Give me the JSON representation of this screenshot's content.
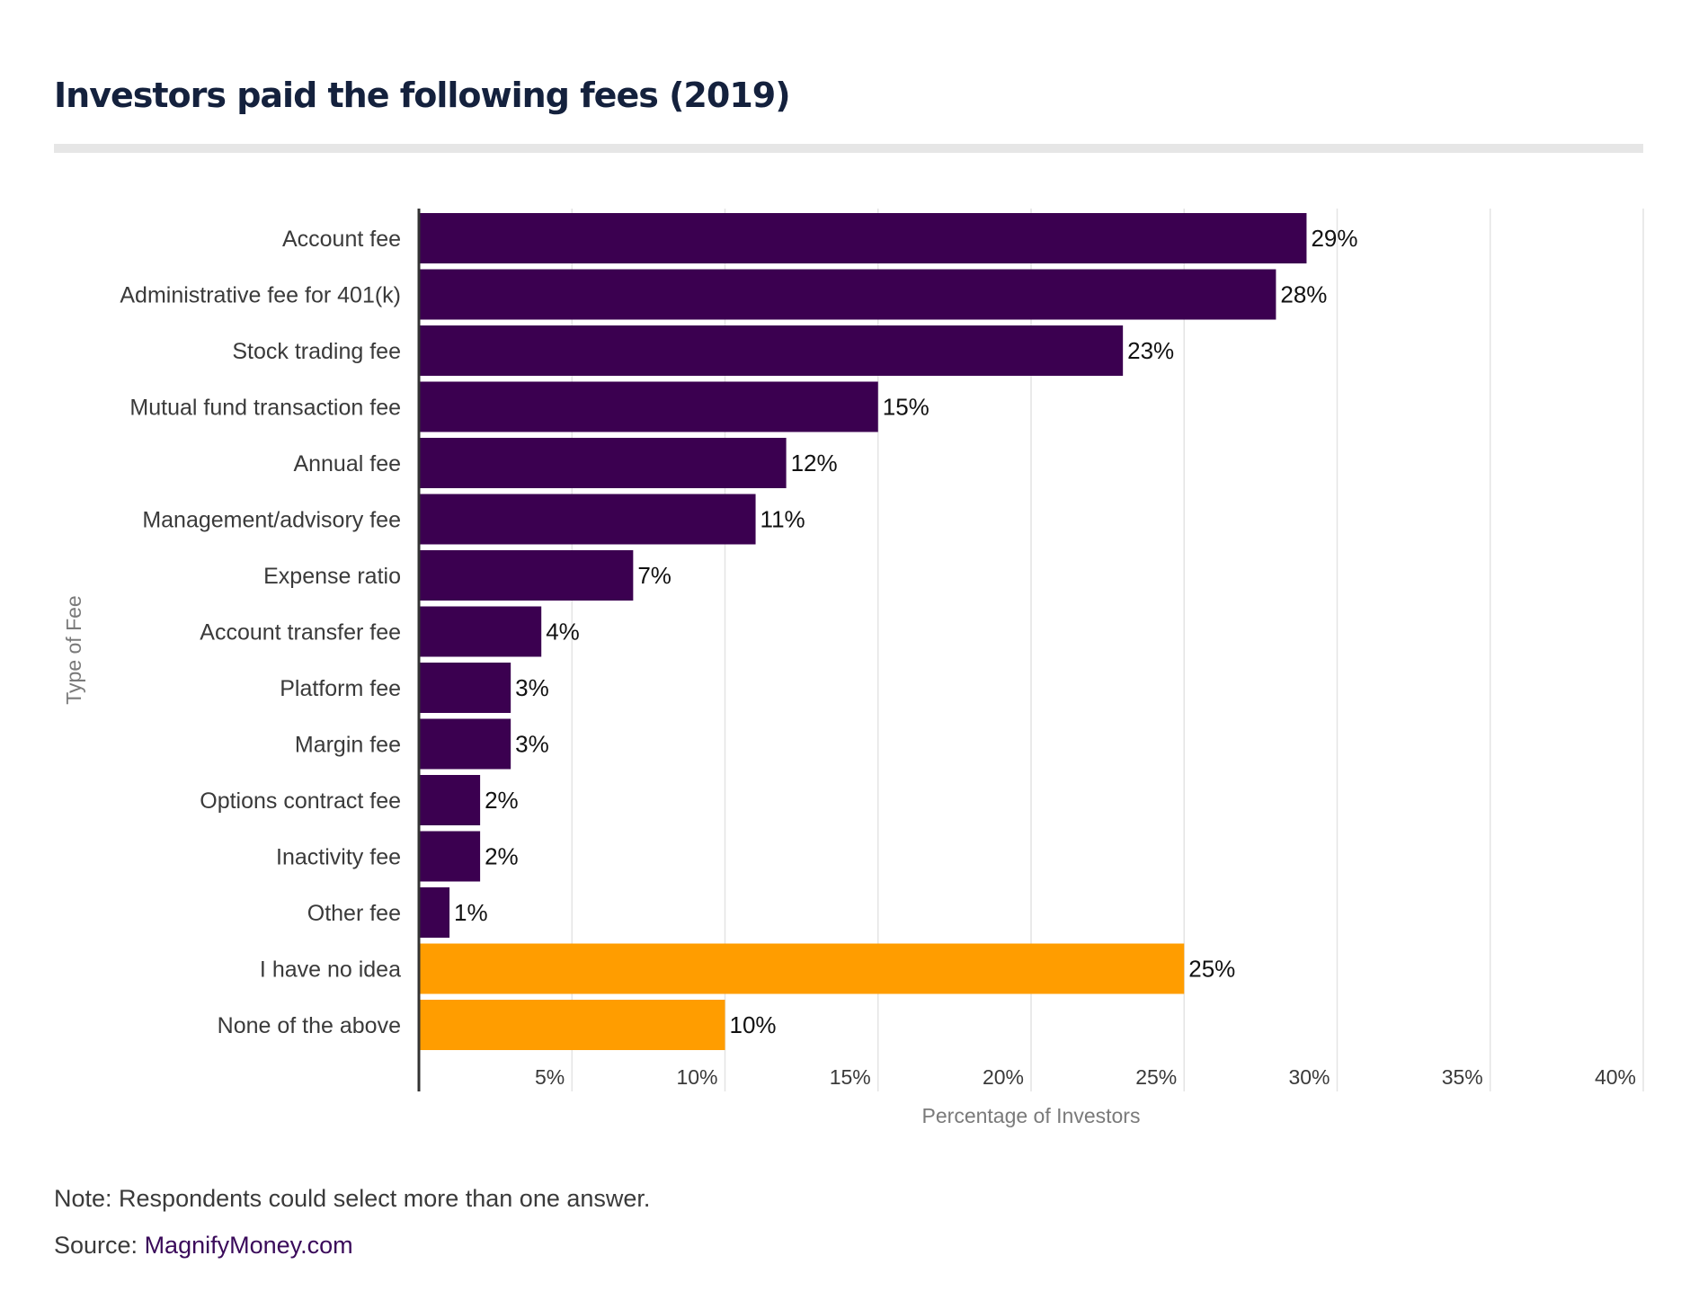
{
  "chart_data": {
    "type": "bar",
    "orientation": "horizontal",
    "title": "Investors paid the following fees (2019)",
    "xlabel": "Percentage of Investors",
    "ylabel": "Type of Fee",
    "xlim": [
      0,
      40
    ],
    "ticks": [
      "5%",
      "10%",
      "15%",
      "20%",
      "25%",
      "30%",
      "35%",
      "40%"
    ],
    "tick_values": [
      5,
      10,
      15,
      20,
      25,
      30,
      35,
      40
    ],
    "grid": true,
    "categories": [
      "Account fee",
      "Administrative fee for 401(k)",
      "Stock trading fee",
      "Mutual fund transaction fee",
      "Annual fee",
      "Management/advisory fee",
      "Expense ratio",
      "Account transfer fee",
      "Platform fee",
      "Margin fee",
      "Options contract fee",
      "Inactivity fee",
      "Other fee",
      "I have no idea",
      "None of the above"
    ],
    "values": [
      29,
      28,
      23,
      15,
      12,
      11,
      7,
      4,
      3,
      3,
      2,
      2,
      1,
      25,
      10
    ],
    "value_labels": [
      "29%",
      "28%",
      "23%",
      "15%",
      "12%",
      "11%",
      "7%",
      "4%",
      "3%",
      "3%",
      "2%",
      "2%",
      "1%",
      "25%",
      "10%"
    ],
    "bar_colors": [
      "#3b0050",
      "#3b0050",
      "#3b0050",
      "#3b0050",
      "#3b0050",
      "#3b0050",
      "#3b0050",
      "#3b0050",
      "#3b0050",
      "#3b0050",
      "#3b0050",
      "#3b0050",
      "#3b0050",
      "#ff9d00",
      "#ff9d00"
    ]
  },
  "footer": {
    "note": "Note: Respondents could select more than one answer.",
    "source_prefix": "Source: ",
    "source_link": "MagnifyMoney.com"
  },
  "colors": {
    "primary_bar": "#3b0050",
    "highlight_bar": "#ff9d00",
    "title": "#14213d",
    "source_link": "#3a0a5a"
  }
}
